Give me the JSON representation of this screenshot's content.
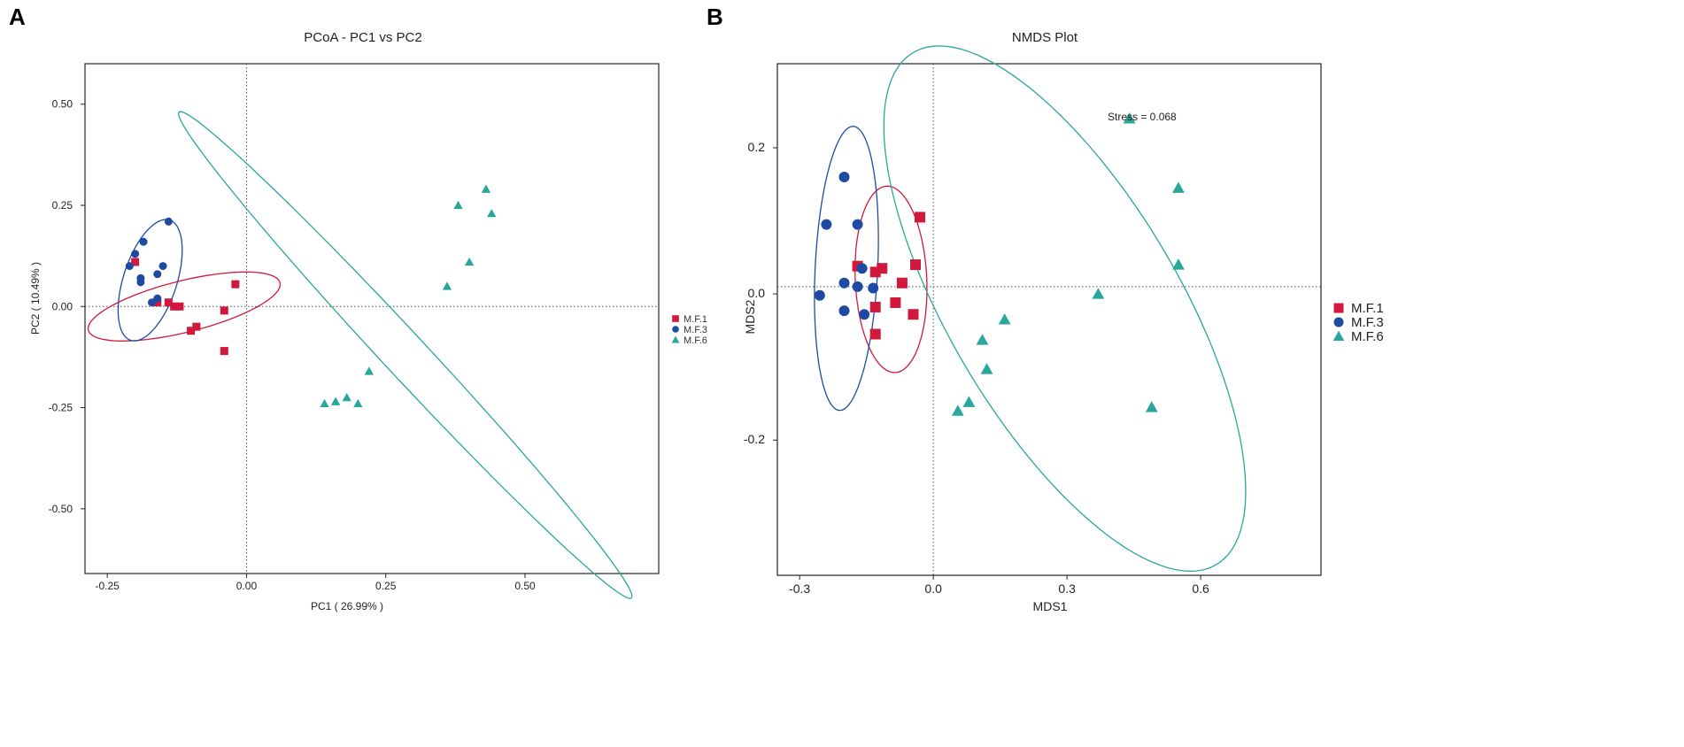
{
  "chart_data": [
    {
      "panel": "A",
      "type": "scatter",
      "title": "PCoA - PC1 vs PC2",
      "xlabel": "PC1 ( 26.99% )",
      "ylabel": "PC2 ( 10.49% )",
      "xlim": [
        -0.29,
        0.74
      ],
      "ylim": [
        -0.66,
        0.6
      ],
      "xticks": [
        -0.25,
        0.0,
        0.25,
        0.5
      ],
      "xtick_labels": [
        "-0.25",
        "0.00",
        "0.25",
        "0.50"
      ],
      "yticks": [
        0.5,
        0.25,
        0.0,
        -0.25,
        -0.5
      ],
      "ytick_labels": [
        "0.50",
        "0.25",
        "0.00",
        "-0.25",
        "-0.50"
      ],
      "reference_lines": {
        "x": 0.0,
        "y": 0.0
      },
      "legend": [
        "M.F.1",
        "M.F.3",
        "M.F.6"
      ],
      "legend_position": "right",
      "series": [
        {
          "name": "M.F.1",
          "color": "#d0193c",
          "marker": "square",
          "points": [
            [
              -0.2,
              0.11
            ],
            [
              -0.14,
              0.01
            ],
            [
              -0.13,
              0.0
            ],
            [
              -0.12,
              0.0
            ],
            [
              -0.1,
              -0.06
            ],
            [
              -0.09,
              -0.05
            ],
            [
              -0.04,
              -0.01
            ],
            [
              -0.04,
              -0.11
            ],
            [
              -0.02,
              0.055
            ],
            [
              -0.16,
              0.01
            ]
          ]
        },
        {
          "name": "M.F.3",
          "color": "#1f4aa3",
          "marker": "circle",
          "points": [
            [
              -0.21,
              0.1
            ],
            [
              -0.2,
              0.13
            ],
            [
              -0.19,
              0.06
            ],
            [
              -0.19,
              0.07
            ],
            [
              -0.185,
              0.16
            ],
            [
              -0.17,
              0.01
            ],
            [
              -0.16,
              0.08
            ],
            [
              -0.15,
              0.1
            ],
            [
              -0.14,
              0.21
            ],
            [
              -0.16,
              0.02
            ]
          ]
        },
        {
          "name": "M.F.6",
          "color": "#2aa79b",
          "marker": "triangle",
          "points": [
            [
              0.38,
              0.25
            ],
            [
              0.43,
              0.29
            ],
            [
              0.44,
              0.23
            ],
            [
              0.4,
              0.11
            ],
            [
              0.36,
              0.05
            ],
            [
              0.22,
              -0.16
            ],
            [
              0.14,
              -0.24
            ],
            [
              0.16,
              -0.235
            ],
            [
              0.18,
              -0.225
            ],
            [
              0.2,
              -0.24
            ]
          ]
        }
      ],
      "ellipses": [
        {
          "group": "M.F.1",
          "color": "#d0193c",
          "cx": -0.112,
          "cy": 0.0,
          "rx": 0.182,
          "ry": 0.062,
          "angle_deg": 20
        },
        {
          "group": "M.F.3",
          "color": "#1f4aa3",
          "cx": -0.173,
          "cy": 0.065,
          "rx": 0.153,
          "ry": 0.049,
          "angle_deg": -102
        },
        {
          "group": "M.F.6",
          "color": "#2aa79b",
          "cx": 0.285,
          "cy": -0.12,
          "rx": 0.725,
          "ry": 0.044,
          "angle_deg": -56
        }
      ]
    },
    {
      "panel": "B",
      "type": "scatter",
      "title": "NMDS Plot",
      "xlabel": "MDS1",
      "ylabel": "MDS2",
      "xlim": [
        -0.35,
        0.87
      ],
      "ylim": [
        -0.385,
        0.315
      ],
      "xticks": [
        -0.3,
        0.0,
        0.3,
        0.6
      ],
      "xtick_labels": [
        "-0.3",
        "0.0",
        "0.3",
        "0.6"
      ],
      "yticks": [
        0.2,
        0.0,
        -0.2
      ],
      "ytick_labels": [
        "0.2",
        "0.0",
        "-0.2"
      ],
      "reference_lines": {
        "x": 0.0,
        "y": 0.01
      },
      "annotation": "Stress = 0.068",
      "legend": [
        "M.F.1",
        "M.F.3",
        "M.F.6"
      ],
      "legend_position": "right",
      "series": [
        {
          "name": "M.F.1",
          "color": "#d0193c",
          "marker": "square",
          "points": [
            [
              -0.03,
              0.105
            ],
            [
              -0.04,
              0.04
            ],
            [
              -0.17,
              0.038
            ],
            [
              -0.13,
              0.03
            ],
            [
              -0.115,
              0.035
            ],
            [
              -0.07,
              0.015
            ],
            [
              -0.13,
              -0.018
            ],
            [
              -0.085,
              -0.012
            ],
            [
              -0.045,
              -0.028
            ],
            [
              -0.13,
              -0.055
            ]
          ]
        },
        {
          "name": "M.F.3",
          "color": "#1f4aa3",
          "marker": "circle",
          "points": [
            [
              -0.2,
              0.16
            ],
            [
              -0.24,
              0.095
            ],
            [
              -0.17,
              0.095
            ],
            [
              -0.16,
              0.035
            ],
            [
              -0.2,
              0.015
            ],
            [
              -0.17,
              0.01
            ],
            [
              -0.135,
              0.008
            ],
            [
              -0.255,
              -0.002
            ],
            [
              -0.2,
              -0.023
            ],
            [
              -0.155,
              -0.028
            ]
          ]
        },
        {
          "name": "M.F.6",
          "color": "#2aa79b",
          "marker": "triangle",
          "points": [
            [
              0.44,
              0.24
            ],
            [
              0.55,
              0.145
            ],
            [
              0.55,
              0.04
            ],
            [
              0.37,
              0.0
            ],
            [
              0.16,
              -0.035
            ],
            [
              0.11,
              -0.063
            ],
            [
              0.12,
              -0.103
            ],
            [
              0.08,
              -0.148
            ],
            [
              0.055,
              -0.16
            ],
            [
              0.49,
              -0.155
            ]
          ]
        }
      ],
      "ellipses": [
        {
          "group": "M.F.1",
          "color": "#d0193c",
          "cx": -0.095,
          "cy": 0.02,
          "rx": 0.128,
          "ry": 0.08,
          "angle_deg": -84
        },
        {
          "group": "M.F.3",
          "color": "#1f4aa3",
          "cx": -0.195,
          "cy": 0.035,
          "rx": 0.195,
          "ry": 0.07,
          "angle_deg": -95
        },
        {
          "group": "M.F.6",
          "color": "#2aa79b",
          "cx": 0.295,
          "cy": -0.02,
          "rx": 0.5,
          "ry": 0.21,
          "angle_deg": -40
        }
      ]
    }
  ],
  "panel_letters": {
    "a": "A",
    "b": "B"
  },
  "colors": {
    "mf1": "#d0193c",
    "mf3": "#1f4aa3",
    "mf6": "#2aa79b"
  }
}
